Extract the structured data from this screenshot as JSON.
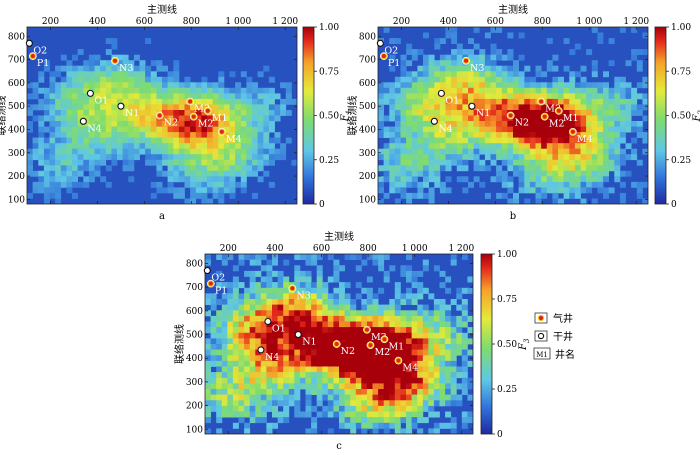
{
  "panels": [
    {
      "id": "a",
      "label": "a",
      "cbar_label": "F",
      "cbar_sub": "1",
      "field_seed": 11,
      "field_gain": 0.55
    },
    {
      "id": "b",
      "label": "b",
      "cbar_label": "F",
      "cbar_sub": "2",
      "field_seed": 23,
      "field_gain": 0.72
    },
    {
      "id": "c",
      "label": "c",
      "cbar_label": "F",
      "cbar_sub": "3",
      "field_seed": 37,
      "field_gain": 1.0
    }
  ],
  "chart_data": {
    "type": "heatmap",
    "xlabel": "主测线",
    "ylabel": "联络测线",
    "xlim": [
      100,
      1250
    ],
    "ylim": [
      80,
      840
    ],
    "xticks": [
      200,
      400,
      600,
      800,
      1000,
      1200
    ],
    "xtick_labels": [
      "200",
      "400",
      "600",
      "800",
      "1 000",
      "1 200"
    ],
    "yticks": [
      100,
      200,
      300,
      400,
      500,
      600,
      700,
      800
    ],
    "ytick_labels": [
      "100",
      "200",
      "300",
      "400",
      "500",
      "600",
      "700",
      "800"
    ],
    "colorbar": {
      "min": 0,
      "max": 1,
      "ticks": [
        0,
        0.25,
        0.5,
        0.75,
        1.0
      ],
      "tick_labels": [
        "0",
        "0.25",
        "0.50",
        "0.75",
        "1.00"
      ]
    },
    "colormap": [
      "#1e2aa0",
      "#2f6fd8",
      "#5fc7e6",
      "#7fdc6e",
      "#e4ea3a",
      "#f6a22a",
      "#e32a1c",
      "#a8000a"
    ],
    "wells": [
      {
        "name": "O2",
        "type": "dry",
        "x": 110,
        "y": 770
      },
      {
        "name": "P1",
        "type": "gas",
        "x": 125,
        "y": 715
      },
      {
        "name": "N3",
        "type": "gas",
        "x": 475,
        "y": 695
      },
      {
        "name": "O1",
        "type": "dry",
        "x": 370,
        "y": 555
      },
      {
        "name": "N1",
        "type": "dry",
        "x": 500,
        "y": 500
      },
      {
        "name": "N4",
        "type": "dry",
        "x": 340,
        "y": 435
      },
      {
        "name": "N2",
        "type": "gas",
        "x": 665,
        "y": 460
      },
      {
        "name": "M3",
        "type": "gas",
        "x": 795,
        "y": 520
      },
      {
        "name": "M1",
        "type": "gas",
        "x": 870,
        "y": 480
      },
      {
        "name": "M2",
        "type": "gas",
        "x": 810,
        "y": 455
      },
      {
        "name": "M4",
        "type": "gas",
        "x": 930,
        "y": 390
      }
    ]
  },
  "legend": {
    "gas_label": "气井",
    "dry_label": "干井",
    "name_symbol": "M1",
    "name_label": "井名"
  }
}
